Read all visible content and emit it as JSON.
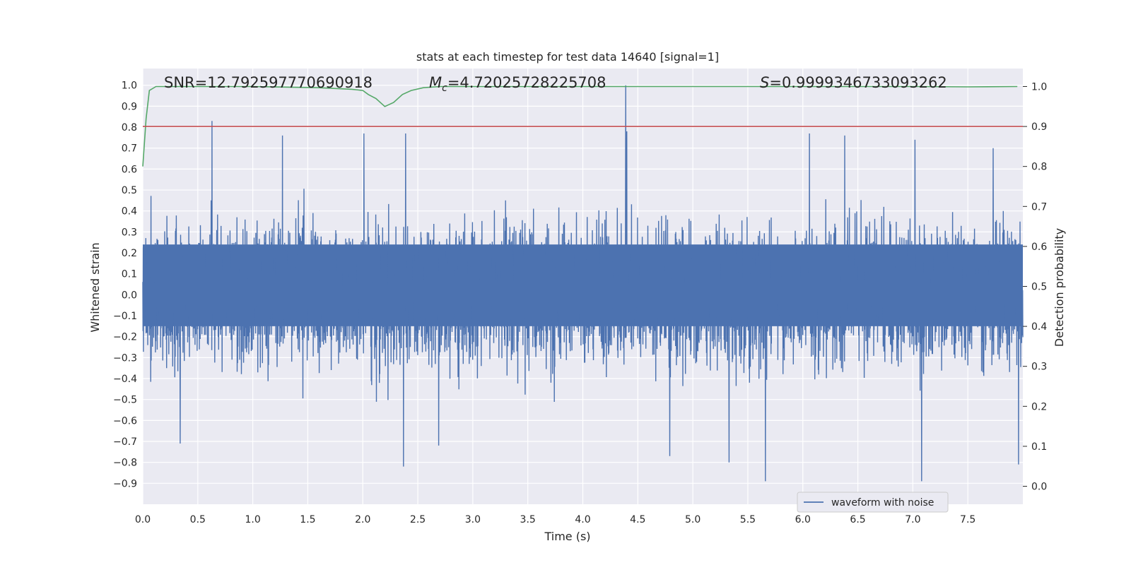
{
  "chart_data": {
    "type": "line",
    "title": "stats at each timestep for test data 14640 [signal=1]",
    "xlabel": "Time (s)",
    "ylabel": "Whitened strain",
    "y2label": "Detection probability",
    "xlim": [
      0.0,
      8.0
    ],
    "ylim": [
      -1.0,
      1.08
    ],
    "y2lim": [
      -0.045,
      1.045
    ],
    "x_ticks": [
      0.0,
      0.5,
      1.0,
      1.5,
      2.0,
      2.5,
      3.0,
      3.5,
      4.0,
      4.5,
      5.0,
      5.5,
      6.0,
      6.5,
      7.0,
      7.5
    ],
    "y_ticks": [
      -0.9,
      -0.8,
      -0.7,
      -0.6,
      -0.5,
      -0.4,
      -0.3,
      -0.2,
      -0.1,
      0.0,
      0.1,
      0.2,
      0.3,
      0.4,
      0.5,
      0.6,
      0.7,
      0.8,
      0.9,
      1.0
    ],
    "y2_ticks": [
      0.0,
      0.1,
      0.2,
      0.3,
      0.4,
      0.5,
      0.6,
      0.7,
      0.8,
      0.9,
      1.0
    ],
    "grid": true,
    "legend": {
      "placement": "lower-right",
      "entries": [
        "waveform with noise"
      ]
    },
    "annotations": {
      "snr": "SNR=12.792597770690918",
      "mc_symbol": "M",
      "mc_sub": "c",
      "mc_value": "=4.72025728225708",
      "s_symbol": "S",
      "s_value": "=0.9999346733093262"
    },
    "series": [
      {
        "name": "waveform with noise",
        "axis": "left",
        "style": "dense-noise",
        "color": "#4c72b0",
        "band": [
          -0.15,
          0.24
        ],
        "peaks": [
          {
            "x": 0.63,
            "y": 0.83
          },
          {
            "x": 1.27,
            "y": 0.76
          },
          {
            "x": 2.01,
            "y": 0.77
          },
          {
            "x": 2.39,
            "y": 0.77
          },
          {
            "x": 4.39,
            "y": 1.0
          },
          {
            "x": 4.4,
            "y": 0.78
          },
          {
            "x": 6.06,
            "y": 0.77
          },
          {
            "x": 6.38,
            "y": 0.76
          },
          {
            "x": 7.02,
            "y": 0.74
          },
          {
            "x": 7.73,
            "y": 0.7
          }
        ],
        "troughs": [
          {
            "x": 0.34,
            "y": -0.71
          },
          {
            "x": 2.37,
            "y": -0.82
          },
          {
            "x": 2.69,
            "y": -0.72
          },
          {
            "x": 4.79,
            "y": -0.77
          },
          {
            "x": 5.33,
            "y": -0.8
          },
          {
            "x": 5.66,
            "y": -0.89
          },
          {
            "x": 7.08,
            "y": -0.89
          },
          {
            "x": 7.96,
            "y": -0.81
          }
        ]
      },
      {
        "name": "",
        "axis": "right",
        "color": "#55a868",
        "x": [
          0.0,
          0.03,
          0.06,
          0.12,
          0.3,
          1.0,
          1.6,
          1.9,
          2.0,
          2.05,
          2.12,
          2.2,
          2.28,
          2.36,
          2.44,
          2.55,
          2.7,
          3.0,
          4.0,
          5.0,
          6.0,
          7.0,
          7.5,
          7.95
        ],
        "y": [
          0.8,
          0.92,
          0.99,
          1.0,
          1.0,
          1.0,
          0.997,
          0.993,
          0.99,
          0.98,
          0.97,
          0.95,
          0.96,
          0.98,
          0.99,
          0.997,
          1.0,
          1.0,
          1.0,
          1.0,
          1.0,
          1.0,
          0.999,
          1.0
        ]
      },
      {
        "name": "",
        "axis": "right",
        "color": "#c44e52",
        "style": "threshold",
        "x": [
          0.0,
          8.0
        ],
        "y": [
          0.9,
          0.9
        ]
      }
    ]
  }
}
